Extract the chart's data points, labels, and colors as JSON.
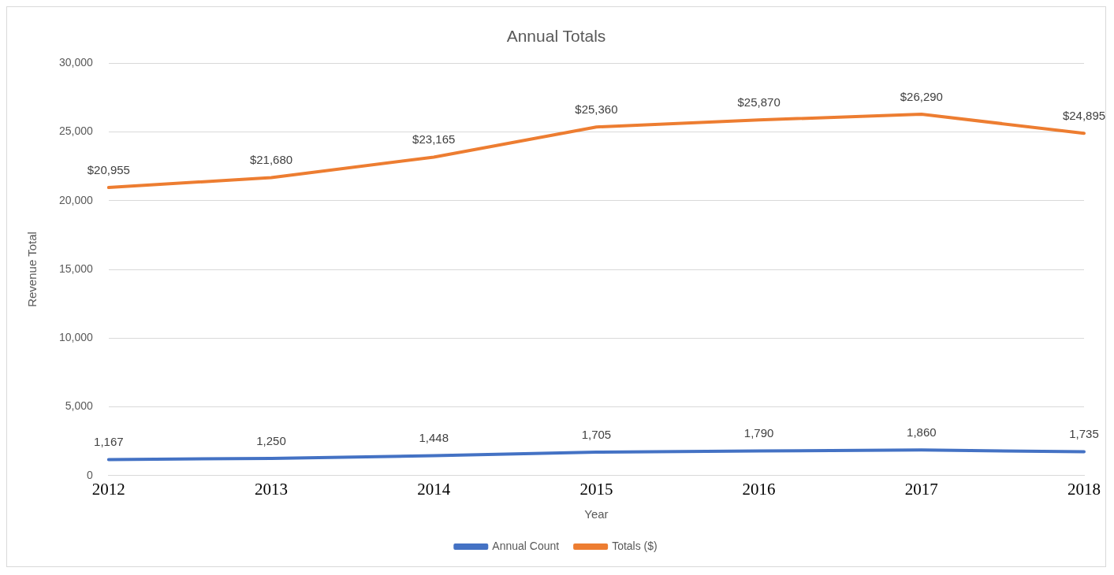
{
  "chart_data": {
    "type": "line",
    "title": "Annual Totals",
    "xlabel": "Year",
    "ylabel": "Revenue Total",
    "categories": [
      "2012",
      "2013",
      "2014",
      "2015",
      "2016",
      "2017",
      "2018"
    ],
    "series": [
      {
        "name": "Annual Count",
        "color": "#4472c4",
        "values": [
          1167,
          1250,
          1448,
          1705,
          1790,
          1860,
          1735
        ],
        "value_labels": [
          "1,167",
          "1,250",
          "1,448",
          "1,705",
          "1,790",
          "1,860",
          "1,735"
        ]
      },
      {
        "name": "Totals ($)",
        "color": "#ed7d31",
        "values": [
          20955,
          21680,
          23165,
          25360,
          25870,
          26290,
          24895
        ],
        "value_labels": [
          "$20,955",
          "$21,680",
          "$23,165",
          "$25,360",
          "$25,870",
          "$26,290",
          "$24,895"
        ]
      }
    ],
    "ylim": [
      0,
      30000
    ],
    "yticks": [
      {
        "value": 0,
        "label": "0"
      },
      {
        "value": 5000,
        "label": "5,000"
      },
      {
        "value": 10000,
        "label": "10,000"
      },
      {
        "value": 15000,
        "label": "15,000"
      },
      {
        "value": 20000,
        "label": "20,000"
      },
      {
        "value": 25000,
        "label": "25,000"
      },
      {
        "value": 30000,
        "label": "30,000"
      }
    ],
    "grid": "y",
    "legend": "bottom",
    "marker": "none",
    "line_style": "solid"
  }
}
